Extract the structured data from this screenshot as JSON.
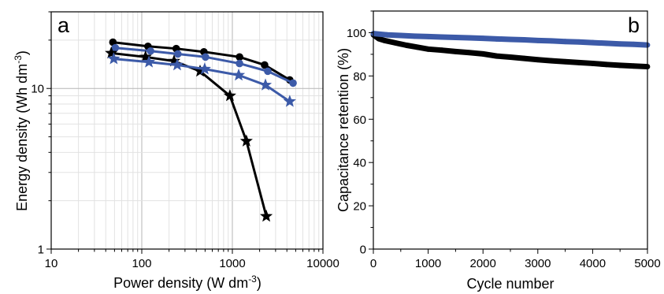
{
  "chart_data": [
    {
      "type": "line",
      "panel_label": "a",
      "xlabel": {
        "main": "Power density (W dm",
        "sup": "-3",
        "end": ")"
      },
      "ylabel": {
        "main": "Energy density (Wh dm",
        "sup": "-3",
        "end": ")"
      },
      "x_scale": "log",
      "y_scale": "log",
      "xlim": [
        10,
        10000
      ],
      "ylim": [
        1,
        30
      ],
      "xticks": [
        10,
        100,
        1000,
        10000
      ],
      "yticks": [
        1,
        10
      ],
      "grid": true,
      "minor_grid": true,
      "series": [
        {
          "marker": "circle",
          "color": "#000000",
          "x": [
            48,
            117,
            240,
            485,
            1200,
            2270,
            4300
          ],
          "y": [
            19.4,
            18.3,
            17.7,
            16.9,
            15.7,
            14.0,
            11.3
          ]
        },
        {
          "marker": "circle",
          "color": "#3c5aa8",
          "x": [
            51,
            125,
            250,
            505,
            1200,
            2460,
            4680
          ],
          "y": [
            17.9,
            17.1,
            16.4,
            15.7,
            14.3,
            12.8,
            10.8
          ]
        },
        {
          "marker": "star",
          "color": "#000000",
          "x": [
            46,
            110,
            227,
            440,
            940,
            1430,
            2370
          ],
          "y": [
            16.6,
            15.7,
            14.8,
            12.8,
            9.0,
            4.7,
            1.6
          ]
        },
        {
          "marker": "star",
          "color": "#3c5aa8",
          "x": [
            49,
            120,
            246,
            495,
            1175,
            2320,
            4300
          ],
          "y": [
            15.3,
            14.6,
            14.0,
            13.2,
            12.1,
            10.5,
            8.3
          ]
        }
      ]
    },
    {
      "type": "line",
      "panel_label": "b",
      "xlabel": "Cycle number",
      "ylabel": "Capacitance retention (%)",
      "xlim": [
        0,
        5000
      ],
      "ylim": [
        0,
        110
      ],
      "xticks": [
        0,
        1000,
        2000,
        3000,
        4000,
        5000
      ],
      "yticks": [
        0,
        20,
        40,
        60,
        80,
        100
      ],
      "grid": false,
      "series": [
        {
          "color": "#000000",
          "x": [
            0,
            100,
            200,
            400,
            600,
            800,
            1000,
            1250,
            1500,
            1750,
            2000,
            2250,
            2500,
            2750,
            3000,
            3250,
            3500,
            3750,
            4000,
            4250,
            4500,
            4750,
            5000
          ],
          "y": [
            99.0,
            97.2,
            96.4,
            95.3,
            94.2,
            93.3,
            92.4,
            91.9,
            91.3,
            90.8,
            90.2,
            89.2,
            88.7,
            88.1,
            87.5,
            87.0,
            86.6,
            86.2,
            85.8,
            85.3,
            84.9,
            84.6,
            84.3
          ]
        },
        {
          "color": "#3c5aa8",
          "x": [
            0,
            250,
            500,
            750,
            1000,
            1250,
            1500,
            1750,
            2000,
            2250,
            2500,
            2750,
            3000,
            3250,
            3500,
            3750,
            4000,
            4250,
            4500,
            4750,
            5000
          ],
          "y": [
            99.6,
            99.0,
            98.7,
            98.4,
            98.2,
            98.0,
            97.8,
            97.6,
            97.4,
            97.1,
            96.9,
            96.7,
            96.4,
            96.2,
            95.9,
            95.7,
            95.4,
            95.1,
            94.8,
            94.6,
            94.3
          ]
        }
      ]
    }
  ]
}
